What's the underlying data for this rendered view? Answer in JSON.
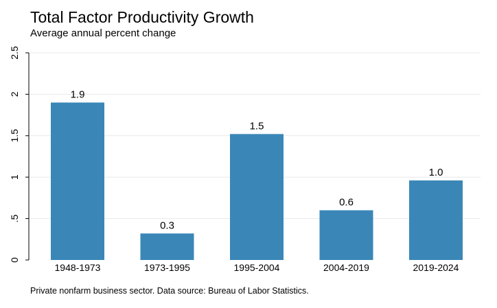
{
  "chart_data": {
    "type": "bar",
    "title": "Total Factor Productivity Growth",
    "subtitle": "Average annual percent change",
    "note": "Private nonfarm business sector. Data source: Bureau of Labor Statistics.",
    "categories": [
      "1948-1973",
      "1973-1995",
      "1995-2004",
      "2004-2019",
      "2019-2024"
    ],
    "values": [
      1.9,
      0.32,
      1.52,
      0.6,
      0.96
    ],
    "data_labels": [
      "1.9",
      "0.3",
      "1.5",
      "0.6",
      "1.0"
    ],
    "ylim": [
      0,
      2.5
    ],
    "yticks": [
      0,
      0.5,
      1,
      1.5,
      2,
      2.5
    ],
    "ytick_labels": [
      "0",
      ".5",
      "1",
      "1.5",
      "2",
      "2.5"
    ],
    "grid": true,
    "bar_color": "#3a87b7",
    "grid_color": "#e8e8e8"
  }
}
